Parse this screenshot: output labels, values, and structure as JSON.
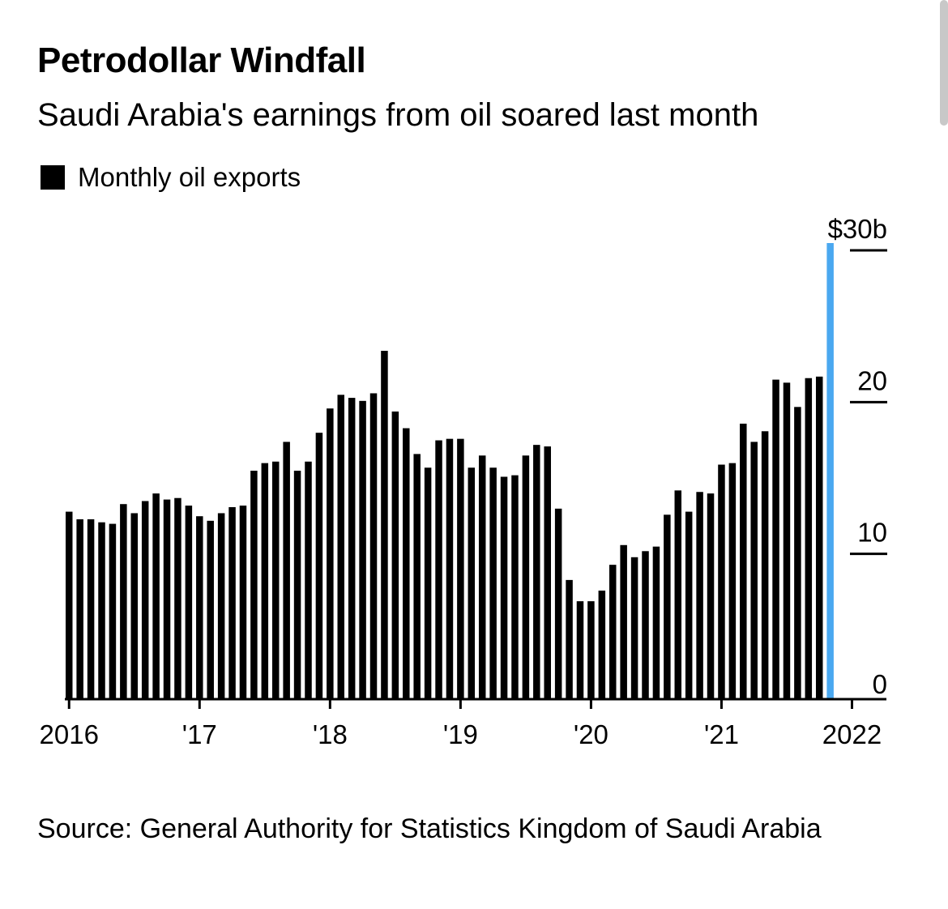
{
  "title": "Petrodollar Windfall",
  "subtitle": "Saudi Arabia's earnings from oil soared last month",
  "legend": {
    "label": "Monthly oil exports",
    "color": "#000000"
  },
  "source": "Source: General Authority for Statistics Kingdom of Saudi Arabia",
  "colors": {
    "bar": "#000000",
    "highlight": "#4aa8f0"
  },
  "chart_data": {
    "type": "bar",
    "title": "Petrodollar Windfall",
    "subtitle": "Saudi Arabia's earnings from oil soared last month",
    "series": [
      {
        "name": "Monthly oil exports",
        "values": [
          12.3,
          11.8,
          11.8,
          11.6,
          11.5,
          12.8,
          12.2,
          13.0,
          13.5,
          13.1,
          13.2,
          12.7,
          12.0,
          11.7,
          12.2,
          12.6,
          12.7,
          15.0,
          15.5,
          15.6,
          16.9,
          15.0,
          15.6,
          17.5,
          19.1,
          20.0,
          19.8,
          19.6,
          20.1,
          22.9,
          18.9,
          17.8,
          16.1,
          15.2,
          17.0,
          17.1,
          17.1,
          15.2,
          16.0,
          15.2,
          14.6,
          14.7,
          16.0,
          16.7,
          16.6,
          12.5,
          7.8,
          6.4,
          6.4,
          7.1,
          8.8,
          10.1,
          9.3,
          9.7,
          10.0,
          12.1,
          13.7,
          12.3,
          13.6,
          13.5,
          15.4,
          15.5,
          18.1,
          16.9,
          17.6,
          21.0,
          20.8,
          19.2,
          21.1,
          21.2,
          30.0
        ],
        "highlight_last": true
      }
    ],
    "start": "2016-01",
    "x_tick_labels": [
      "2016",
      "'17",
      "'18",
      "'19",
      "'20",
      "'21",
      "2022"
    ],
    "y_tick_labels": [
      "0",
      "10",
      "20",
      "$30b"
    ],
    "y_ticks": [
      0,
      10,
      20,
      30
    ],
    "ylim": [
      0,
      30
    ],
    "xlabel": "",
    "ylabel": ""
  }
}
